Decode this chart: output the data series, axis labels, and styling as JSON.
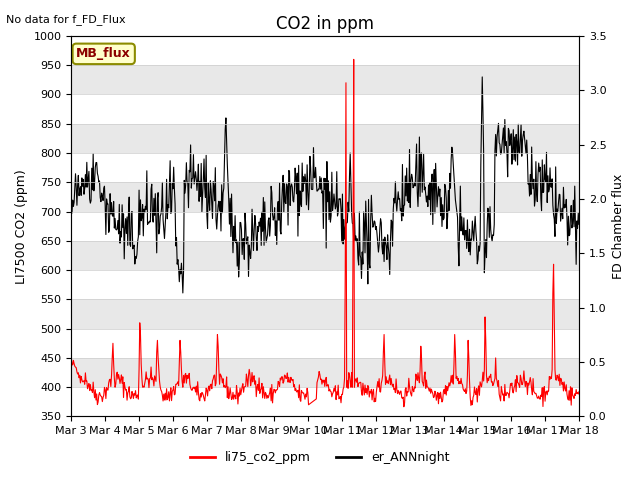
{
  "title": "CO2 in ppm",
  "top_left_text": "No data for f_FD_Flux",
  "ylabel_left": "LI7500 CO2 (ppm)",
  "ylabel_right": "FD Chamber flux",
  "ylim_left": [
    350,
    1000
  ],
  "ylim_right": [
    0.0,
    3.5
  ],
  "xticklabels": [
    "Mar 3",
    "Mar 4",
    "Mar 5",
    "Mar 6",
    "Mar 7",
    "Mar 8",
    "Mar 9",
    "Mar 10",
    "Mar 11",
    "Mar 12",
    "Mar 13",
    "Mar 14",
    "Mar 15",
    "Mar 16",
    "Mar 17",
    "Mar 18"
  ],
  "legend_label1": "li75_co2_ppm",
  "legend_label2": "er_ANNnight",
  "mb_flux_label": "MB_flux",
  "color_red": "#FF0000",
  "color_black": "#000000",
  "background_color": "#ffffff",
  "band_color": "#e8e8e8",
  "title_fontsize": 12,
  "axis_fontsize": 9,
  "tick_fontsize": 8
}
